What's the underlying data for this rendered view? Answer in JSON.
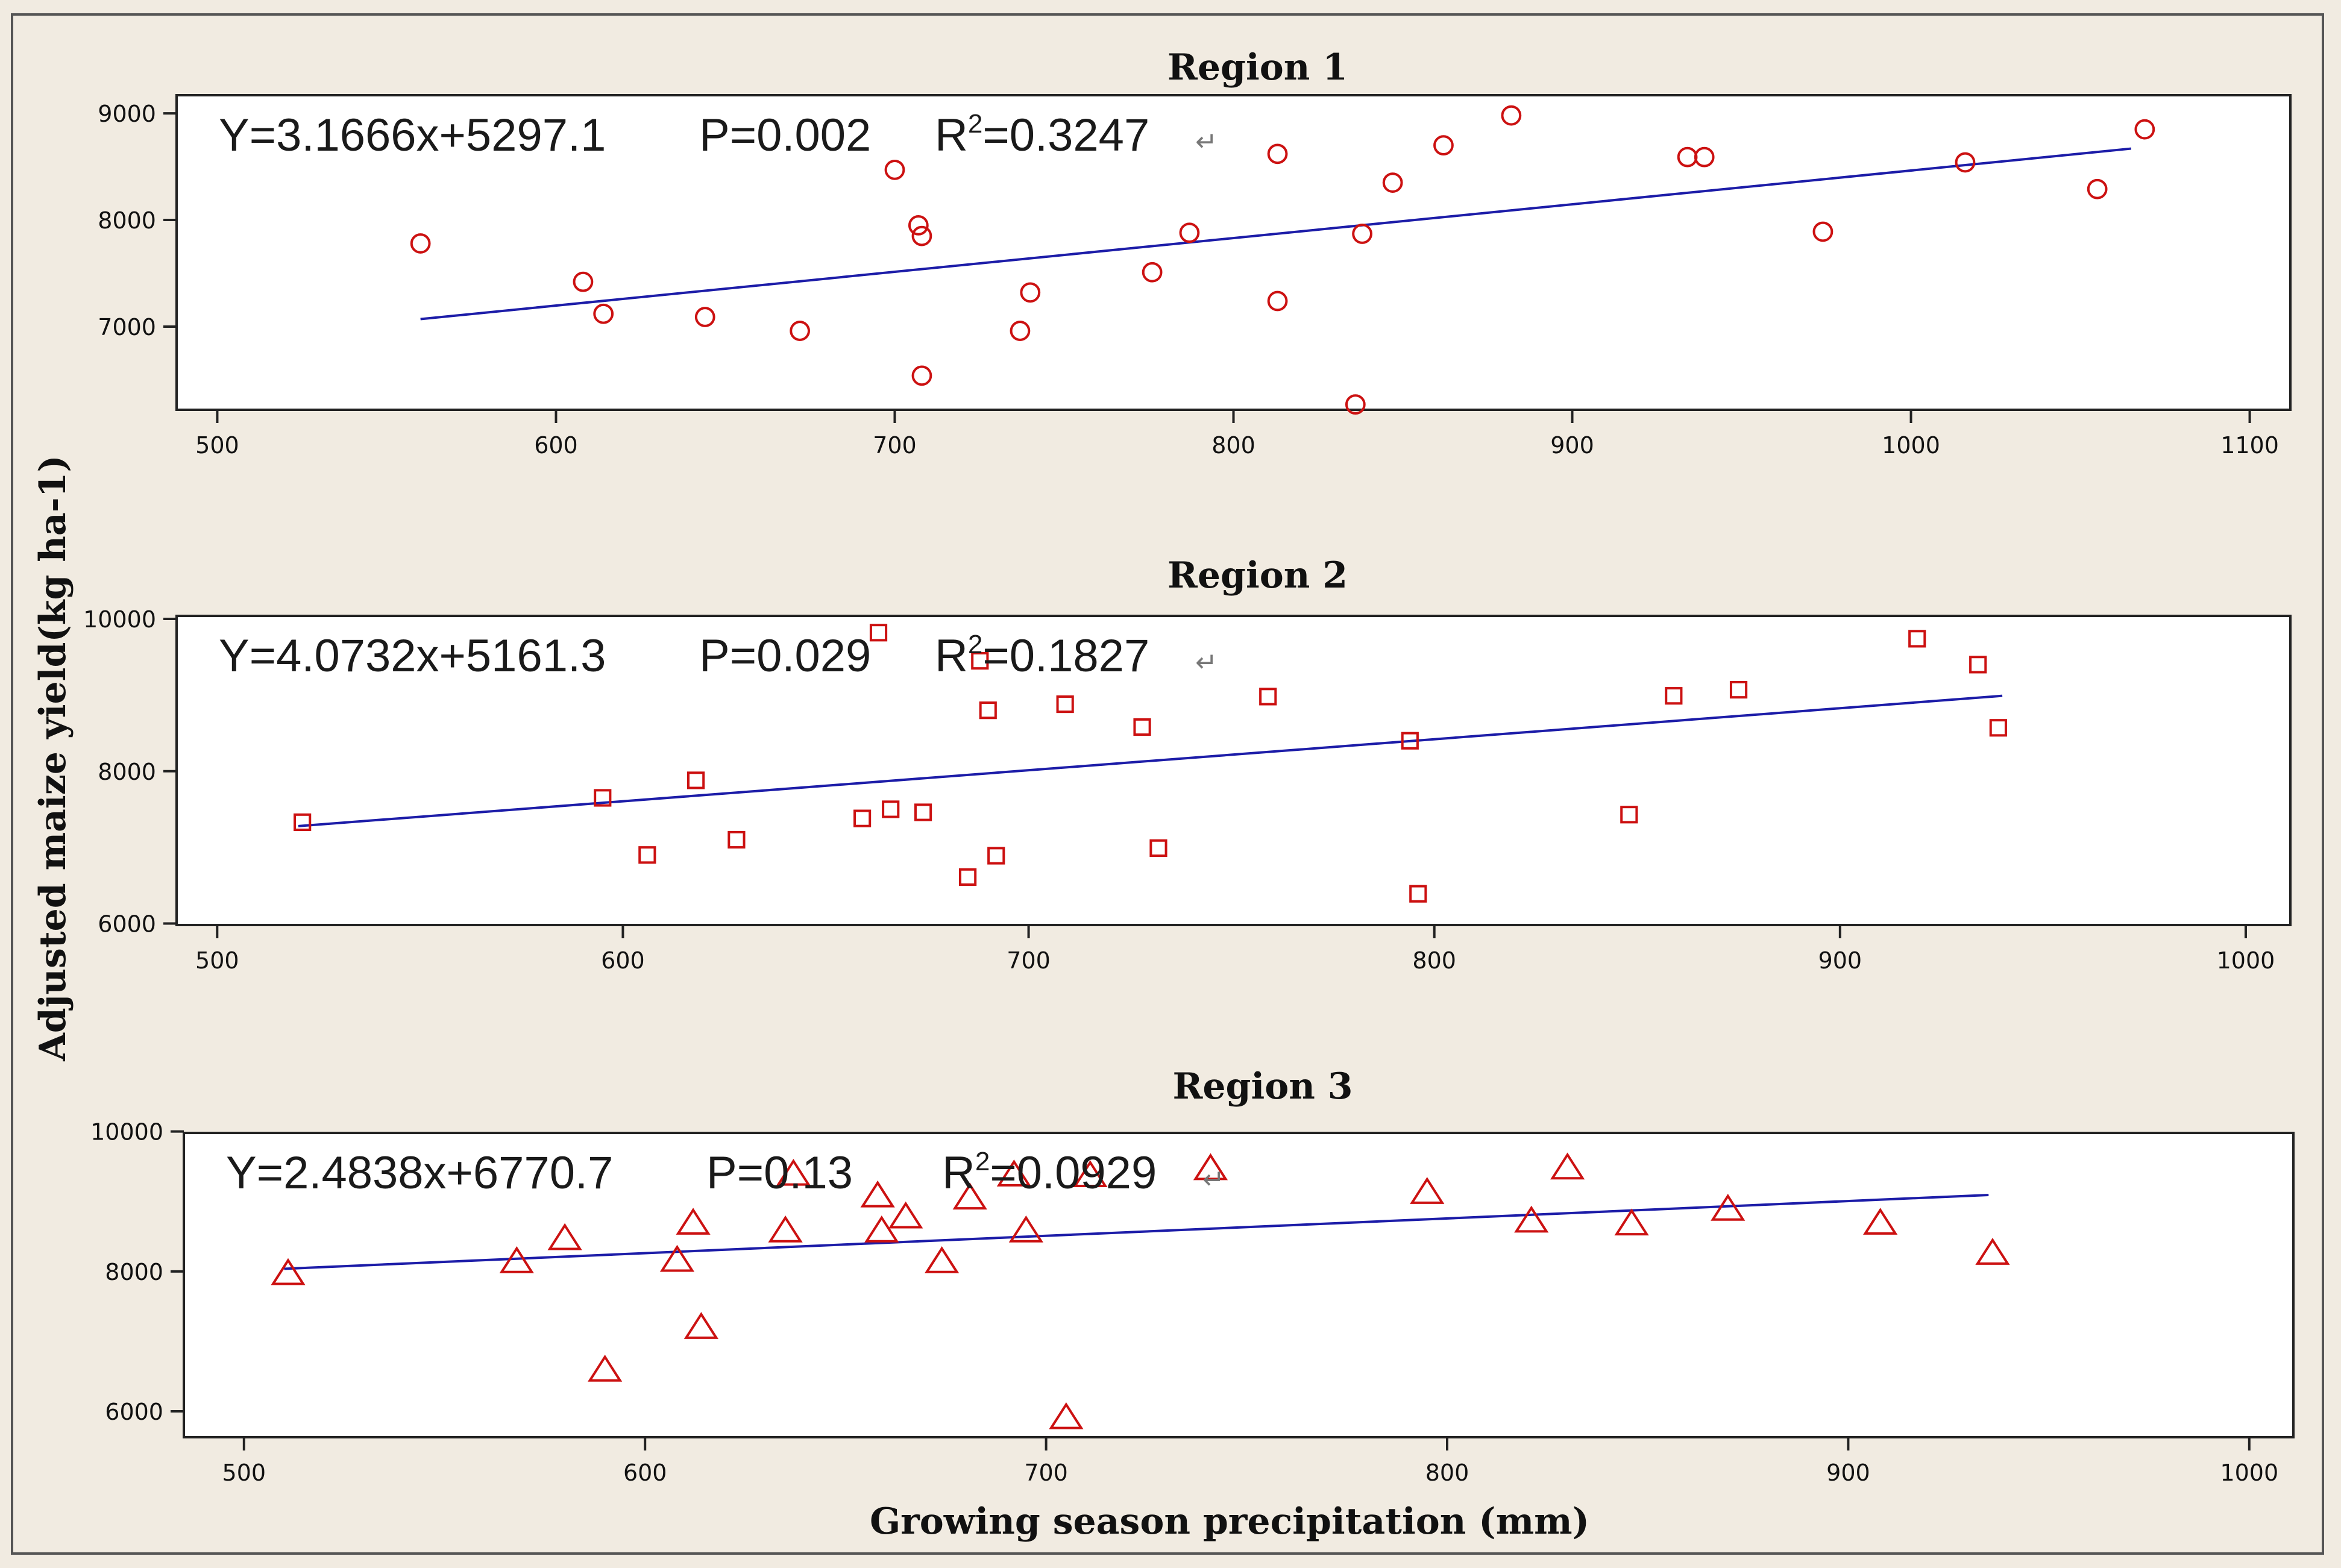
{
  "figure": {
    "ylabel": "Adjusted maize yield(kg ha-1)",
    "xlabel": "Growing season precipitation (mm)"
  },
  "colors": {
    "background": "#f1ebe1",
    "marker": "#cc1111",
    "line": "#1c1ca8"
  },
  "chart_data": [
    {
      "type": "scatter",
      "title": "Region 1",
      "xlabel": "Growing season precipitation (mm)",
      "ylabel": "Adjusted maize yield(kg ha-1)",
      "equation": "Y=3.1666x+5297.1",
      "p_value": "P=0.002",
      "r2_prefix": "R",
      "r2_value": "=0.3247",
      "marker": "circle",
      "xlim": [
        488,
        1112
      ],
      "ylim": [
        6220,
        9170
      ],
      "xticks": [
        500,
        600,
        700,
        800,
        900,
        1000,
        1100
      ],
      "yticks": [
        7000,
        8000,
        9000
      ],
      "regression": {
        "slope": 3.1666,
        "intercept": 5297.1,
        "x_from": 560,
        "x_to": 1065
      },
      "x": [
        560,
        608,
        614,
        644,
        672,
        700,
        707,
        708,
        708,
        737,
        740,
        776,
        787,
        813,
        813,
        836,
        838,
        847,
        862,
        882,
        934,
        939,
        974,
        1016,
        1055,
        1069
      ],
      "y": [
        7780,
        7420,
        7120,
        7090,
        6960,
        8470,
        7950,
        7850,
        6540,
        6960,
        7320,
        7510,
        7880,
        8620,
        7240,
        6270,
        7870,
        8350,
        8700,
        8980,
        8590,
        8590,
        7890,
        8540,
        8290,
        8850
      ]
    },
    {
      "type": "scatter",
      "title": "Region 2",
      "xlabel": "Growing season precipitation (mm)",
      "ylabel": "Adjusted maize yield(kg ha-1)",
      "equation": "Y=4.0732x+5161.3",
      "p_value": "P=0.029",
      "r2_prefix": "R",
      "r2_value": "=0.1827",
      "marker": "square",
      "xlim": [
        490,
        1011
      ],
      "ylim": [
        5980,
        10040
      ],
      "xticks": [
        500,
        600,
        700,
        800,
        900,
        1000
      ],
      "yticks": [
        6000,
        8000,
        10000
      ],
      "regression": {
        "slope": 4.0732,
        "intercept": 5161.3,
        "x_from": 520,
        "x_to": 940
      },
      "x": [
        521,
        595,
        606,
        618,
        628,
        659,
        666,
        663,
        674,
        685,
        688,
        690,
        692,
        709,
        728,
        732,
        759,
        794,
        796,
        848,
        859,
        875,
        919,
        934,
        939
      ],
      "y": [
        7330,
        7650,
        6900,
        7880,
        7100,
        7380,
        7500,
        9820,
        7460,
        6610,
        9450,
        8800,
        6890,
        8880,
        8580,
        6990,
        8980,
        8400,
        6390,
        7430,
        8990,
        9070,
        9740,
        9400,
        8570
      ]
    },
    {
      "type": "scatter",
      "title": "Region 3",
      "xlabel": "Growing season precipitation (mm)",
      "ylabel": "Adjusted maize yield(kg ha-1)",
      "equation": "Y=2.4838x+6770.7",
      "p_value": "P=0.13",
      "r2_prefix": "R",
      "r2_value": "=0.0929",
      "marker": "triangle",
      "xlim": [
        485,
        1011
      ],
      "ylim": [
        5630,
        9980
      ],
      "xticks": [
        500,
        600,
        700,
        800,
        900,
        1000
      ],
      "yticks": [
        6000,
        8000,
        10000
      ],
      "regression": {
        "slope": 2.4838,
        "intercept": 6770.7,
        "x_from": 510,
        "x_to": 935
      },
      "x": [
        511,
        568,
        580,
        590,
        608,
        612,
        614,
        635,
        637,
        658,
        659,
        665,
        674,
        681,
        692,
        695,
        705,
        711,
        741,
        795,
        821,
        830,
        846,
        870,
        908,
        936
      ],
      "y": [
        7970,
        8140,
        8470,
        6590,
        8160,
        8690,
        7200,
        8580,
        9390,
        9080,
        8580,
        8780,
        8140,
        9050,
        9380,
        8580,
        5910,
        9370,
        9470,
        9130,
        8720,
        9480,
        8680,
        8890,
        8690,
        8260
      ]
    }
  ]
}
